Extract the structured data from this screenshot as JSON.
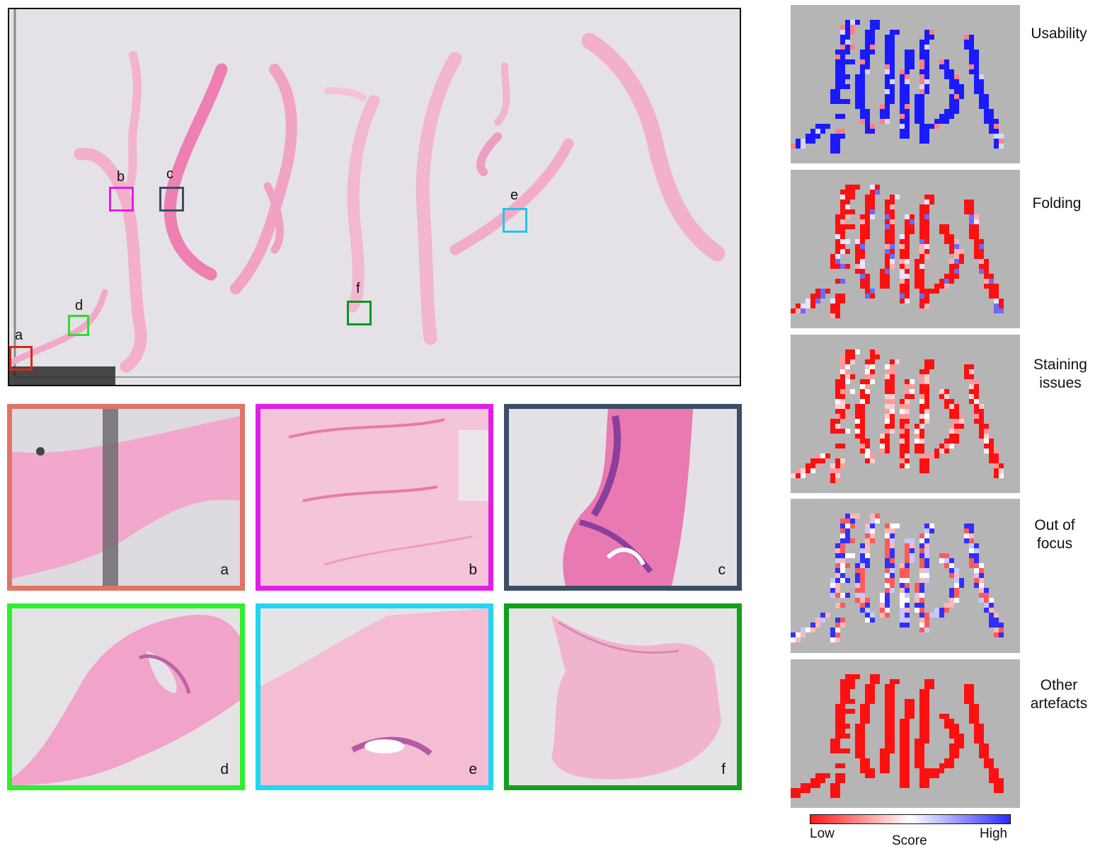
{
  "slide": {
    "regions": [
      {
        "letter": "a",
        "color": "#d42a1c"
      },
      {
        "letter": "b",
        "color": "#e01fe6"
      },
      {
        "letter": "c",
        "color": "#3b4e66"
      },
      {
        "letter": "d",
        "color": "#2fdc2f"
      },
      {
        "letter": "e",
        "color": "#1ec8ea"
      },
      {
        "letter": "f",
        "color": "#13951d"
      }
    ]
  },
  "tiles": [
    {
      "letter": "a",
      "color": "#e07466"
    },
    {
      "letter": "b",
      "color": "#e01fe6"
    },
    {
      "letter": "c",
      "color": "#3b4e66"
    },
    {
      "letter": "d",
      "color": "#2fee2f"
    },
    {
      "letter": "e",
      "color": "#1ed8f2"
    },
    {
      "letter": "f",
      "color": "#13a01d"
    }
  ],
  "maps": [
    {
      "label_lines": [
        "Usability"
      ],
      "scheme": "mostly-high"
    },
    {
      "label_lines": [
        "Folding"
      ],
      "scheme": "mostly-low"
    },
    {
      "label_lines": [
        "Staining",
        "issues"
      ],
      "scheme": "low-mixed"
    },
    {
      "label_lines": [
        "Out of",
        "focus"
      ],
      "scheme": "mixed"
    },
    {
      "label_lines": [
        "Other",
        "artefacts"
      ],
      "scheme": "all-low"
    }
  ],
  "colorbar": {
    "low_label": "Low",
    "high_label": "High",
    "title": "Score",
    "low_color": "#ff1a1a",
    "mid_color": "#ffffff",
    "high_color": "#2a2aff"
  }
}
